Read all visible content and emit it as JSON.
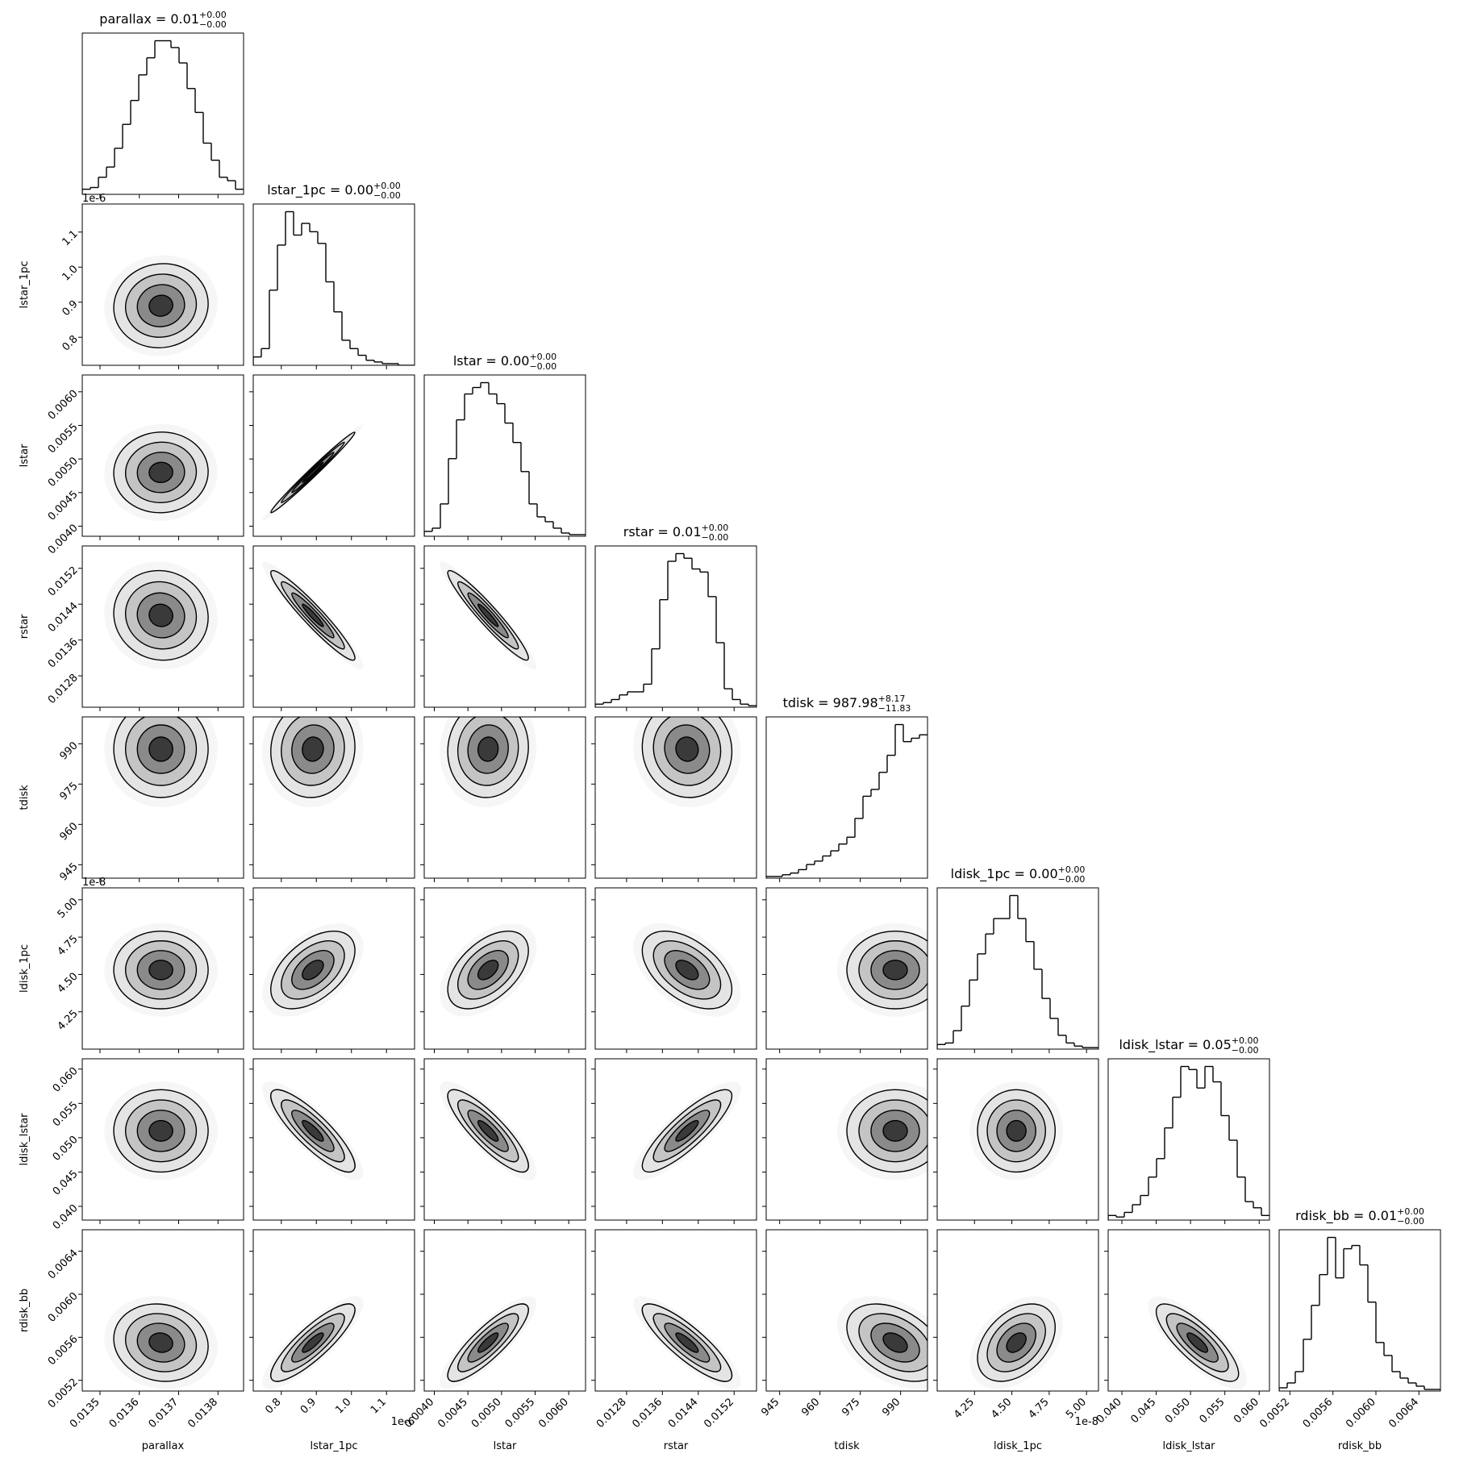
{
  "chart_data": {
    "type": "corner",
    "params": [
      {
        "name": "parallax",
        "title": "parallax = 0.01",
        "upper": "+0.00",
        "lower": "−0.00",
        "xlim": [
          0.013455,
          0.013865
        ],
        "ticks": [
          0.0135,
          0.0136,
          0.0137,
          0.0138
        ],
        "mean": 0.013655,
        "sd": 6e-05,
        "hist": [
          3,
          4,
          10,
          16,
          27,
          41,
          55,
          70,
          80,
          90,
          90,
          86,
          77,
          62,
          48,
          30,
          20,
          10,
          8,
          3
        ]
      },
      {
        "name": "lstar_1pc",
        "title": "lstar_1pc = 0.00",
        "upper": "+0.00",
        "lower": "−0.00",
        "offset": "1e-6",
        "xlim": [
          0.72,
          1.18
        ],
        "ticks": [
          0.8,
          0.9,
          {
            "value": 1,
            "label": "1.0"
          },
          1.1
        ],
        "mean": 0.89,
        "sd": 0.06,
        "hist": [
          5,
          10,
          45,
          72,
          92,
          78,
          85,
          80,
          73,
          50,
          32,
          15,
          10,
          6,
          3,
          2,
          1,
          1,
          0,
          0
        ]
      },
      {
        "name": "lstar",
        "title": "lstar = 0.00",
        "upper": "+0.00",
        "lower": "−0.00",
        "xlim": [
          0.00385,
          0.00625
        ],
        "ticks": [
          {
            "value": 0.004,
            "label": "0.0040"
          },
          0.0045,
          {
            "value": 0.005,
            "label": "0.0050"
          },
          0.0055,
          {
            "value": 0.006,
            "label": "0.0060"
          }
        ],
        "mean": 0.0048,
        "sd": 0.0003,
        "hist": [
          3,
          5,
          20,
          48,
          72,
          88,
          92,
          95,
          88,
          82,
          70,
          58,
          40,
          20,
          12,
          9,
          5,
          2,
          1,
          1
        ]
      },
      {
        "name": "rstar",
        "title": "rstar = 0.01",
        "upper": "+0.00",
        "lower": "−0.00",
        "xlim": [
          0.0121,
          0.0157
        ],
        "ticks": [
          0.0128,
          0.0136,
          0.0144,
          0.0152
        ],
        "mean": 0.01415,
        "sd": 0.0005,
        "hist": [
          2,
          3,
          5,
          8,
          10,
          10,
          15,
          38,
          70,
          95,
          100,
          97,
          90,
          88,
          72,
          42,
          12,
          5,
          2,
          1
        ]
      },
      {
        "name": "tdisk",
        "title": "tdisk = 987.98",
        "upper": "+8.17",
        "lower": "−11.83",
        "xlim": [
          940,
          1000
        ],
        "ticks": [
          945,
          960,
          975,
          990
        ],
        "mean": 988,
        "sd": 9,
        "hist": [
          1,
          1,
          2,
          3,
          5,
          8,
          10,
          13,
          16,
          20,
          24,
          35,
          48,
          52,
          62,
          72,
          90,
          80,
          82,
          84
        ]
      },
      {
        "name": "ldisk_1pc",
        "title": "ldisk_1pc = 0.00",
        "upper": "+0.00",
        "lower": "−0.00",
        "offset": "1e-8",
        "xlim": [
          4.0,
          5.08
        ],
        "ticks": [
          4.25,
          {
            "value": 4.5,
            "label": "4.50"
          },
          4.75,
          {
            "value": 5,
            "label": "5.00"
          }
        ],
        "mean": 4.53,
        "sd": 0.13,
        "hist": [
          3,
          4,
          12,
          28,
          45,
          62,
          75,
          85,
          85,
          100,
          85,
          70,
          52,
          33,
          20,
          9,
          4,
          2,
          1,
          1
        ]
      },
      {
        "name": "ldisk_lstar",
        "title": "ldisk_lstar = 0.05",
        "upper": "+0.00",
        "lower": "−0.00",
        "xlim": [
          0.038,
          0.0615
        ],
        "ticks": [
          {
            "value": 0.04,
            "label": "0.040"
          },
          0.045,
          {
            "value": 0.05,
            "label": "0.050"
          },
          0.055,
          {
            "value": 0.06,
            "label": "0.060"
          }
        ],
        "mean": 0.051,
        "sd": 0.003,
        "hist": [
          3,
          2,
          5,
          10,
          16,
          28,
          40,
          60,
          80,
          100,
          98,
          86,
          100,
          90,
          68,
          52,
          28,
          12,
          8,
          3
        ]
      },
      {
        "name": "rdisk_bb",
        "title": "rdisk_bb = 0.01",
        "upper": "+0.00",
        "lower": "−0.00",
        "xlim": [
          0.0051,
          0.0066
        ],
        "ticks": [
          0.0052,
          0.0056,
          {
            "value": 0.006,
            "label": "0.0060"
          },
          0.0064
        ],
        "mean": 0.00555,
        "sd": 0.00018,
        "hist": [
          2,
          5,
          12,
          32,
          53,
          72,
          95,
          70,
          88,
          90,
          78,
          55,
          30,
          22,
          12,
          8,
          5,
          3,
          1,
          1
        ]
      }
    ],
    "corr": [
      [
        0.05
      ],
      [
        0.02,
        0.99
      ],
      [
        -0.05,
        -0.95,
        -0.95
      ],
      [
        0,
        0.05,
        0.05,
        -0.05
      ],
      [
        0,
        0.5,
        0.5,
        -0.5,
        0
      ],
      [
        0,
        -0.85,
        -0.85,
        0.85,
        0,
        0
      ],
      [
        -0.1,
        0.85,
        0.85,
        -0.85,
        -0.4,
        0.4,
        -0.8
      ]
    ]
  }
}
